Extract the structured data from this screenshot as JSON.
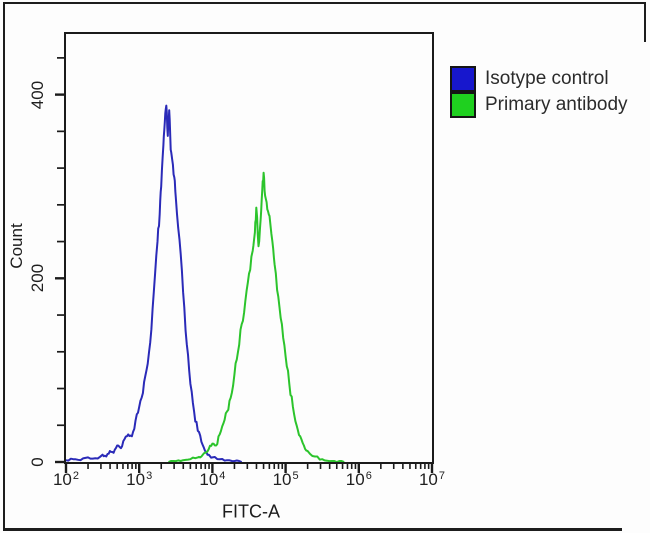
{
  "figure": {
    "background": "#fdfdfd",
    "outer_border_color": "#1d1d1d",
    "frame_color": "#1b1b1b",
    "text_color": "#1f1f1f"
  },
  "chart_data": {
    "type": "line",
    "subtype": "flow-cytometry-histogram",
    "title": "",
    "xlabel": "FITC-A",
    "ylabel": "Count",
    "x_scale": "log",
    "xlim": [
      100,
      10000000
    ],
    "ylim": [
      0,
      466
    ],
    "x_decade_exponents": [
      2,
      3,
      4,
      5,
      6,
      7
    ],
    "x_tick_base": "10",
    "y_major_ticks": [
      {
        "value": 0,
        "label": "0"
      },
      {
        "value": 200,
        "label": "200"
      },
      {
        "value": 400,
        "label": "400"
      }
    ],
    "y_minor_step": 40,
    "grid": false,
    "legend": {
      "position": "outside-right-top",
      "entries": [
        {
          "label": "Isotype control",
          "color": "#1717cd"
        },
        {
          "label": "Primary antibody",
          "color": "#1fd01f"
        }
      ]
    },
    "series": [
      {
        "name": "Isotype control",
        "color": "#2a2ab8",
        "peak": {
          "x": 2300,
          "count": 388
        },
        "points": [
          [
            100,
            2
          ],
          [
            126,
            3
          ],
          [
            158,
            2
          ],
          [
            200,
            5
          ],
          [
            251,
            4
          ],
          [
            316,
            8
          ],
          [
            355,
            6
          ],
          [
            398,
            12
          ],
          [
            447,
            10
          ],
          [
            501,
            18
          ],
          [
            562,
            15
          ],
          [
            631,
            25
          ],
          [
            708,
            30
          ],
          [
            794,
            28
          ],
          [
            891,
            45
          ],
          [
            1000,
            60
          ],
          [
            1122,
            75
          ],
          [
            1259,
            100
          ],
          [
            1413,
            130
          ],
          [
            1585,
            185
          ],
          [
            1778,
            240
          ],
          [
            1905,
            270
          ],
          [
            1995,
            300
          ],
          [
            2138,
            345
          ],
          [
            2239,
            370
          ],
          [
            2344,
            388
          ],
          [
            2455,
            355
          ],
          [
            2570,
            383
          ],
          [
            2692,
            340
          ],
          [
            2818,
            330
          ],
          [
            3020,
            310
          ],
          [
            3162,
            288
          ],
          [
            3548,
            242
          ],
          [
            3981,
            185
          ],
          [
            4467,
            128
          ],
          [
            5012,
            85
          ],
          [
            5623,
            55
          ],
          [
            6310,
            34
          ],
          [
            7079,
            22
          ],
          [
            7943,
            12
          ],
          [
            8913,
            8
          ],
          [
            10000,
            5
          ],
          [
            12589,
            3
          ],
          [
            15849,
            2
          ],
          [
            19953,
            1
          ],
          [
            25119,
            0
          ]
        ]
      },
      {
        "name": "Primary antibody",
        "color": "#2cc42c",
        "peak": {
          "x": 50000,
          "count": 315
        },
        "points": [
          [
            2512,
            0
          ],
          [
            3162,
            1
          ],
          [
            3981,
            2
          ],
          [
            5012,
            3
          ],
          [
            6310,
            5
          ],
          [
            7079,
            6
          ],
          [
            7943,
            10
          ],
          [
            8913,
            14
          ],
          [
            10000,
            20
          ],
          [
            11220,
            18
          ],
          [
            12589,
            30
          ],
          [
            14125,
            42
          ],
          [
            15849,
            55
          ],
          [
            17783,
            70
          ],
          [
            19953,
            95
          ],
          [
            22387,
            120
          ],
          [
            25119,
            150
          ],
          [
            28184,
            175
          ],
          [
            31623,
            205
          ],
          [
            35481,
            230
          ],
          [
            38019,
            250
          ],
          [
            39811,
            277
          ],
          [
            42658,
            235
          ],
          [
            45709,
            265
          ],
          [
            47863,
            295
          ],
          [
            50119,
            315
          ],
          [
            52481,
            290
          ],
          [
            56234,
            275
          ],
          [
            60256,
            268
          ],
          [
            66069,
            240
          ],
          [
            70795,
            215
          ],
          [
            79433,
            180
          ],
          [
            89125,
            150
          ],
          [
            100000,
            115
          ],
          [
            112202,
            85
          ],
          [
            125893,
            60
          ],
          [
            141254,
            40
          ],
          [
            158489,
            28
          ],
          [
            177828,
            18
          ],
          [
            199526,
            12
          ],
          [
            251189,
            6
          ],
          [
            316228,
            3
          ],
          [
            398107,
            1
          ],
          [
            501187,
            0
          ],
          [
            630957,
            0
          ]
        ]
      }
    ]
  }
}
